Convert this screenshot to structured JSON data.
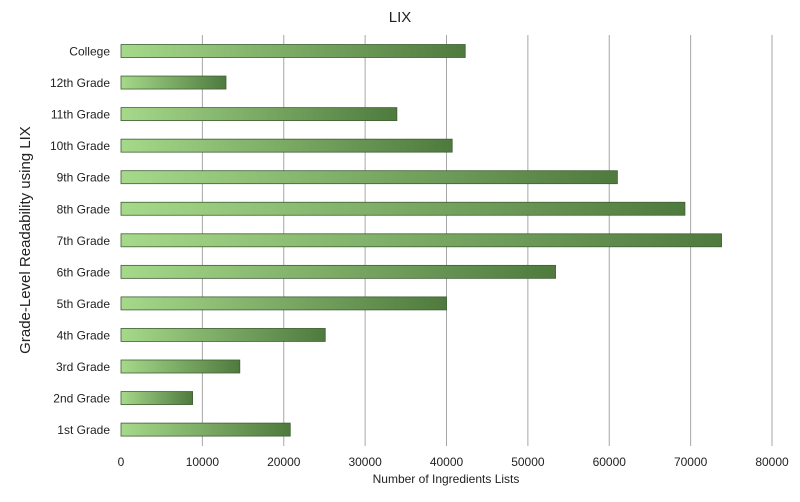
{
  "chart_data": {
    "type": "bar",
    "orientation": "horizontal",
    "title": "LIX",
    "xlabel": "Number of Ingredients Lists",
    "ylabel": "Grade-Level Readability using LIX",
    "categories": [
      "College",
      "12th Grade",
      "11th Grade",
      "10th Grade",
      "9th Grade",
      "8th Grade",
      "7th Grade",
      "6th Grade",
      "5th Grade",
      "4th Grade",
      "3rd Grade",
      "2nd Grade",
      "1st Grade"
    ],
    "values": [
      42300,
      12900,
      33900,
      40700,
      61000,
      69300,
      73800,
      53400,
      40000,
      25100,
      14600,
      8800,
      20800
    ],
    "xlim": [
      0,
      80000
    ],
    "xticks": [
      "0",
      "10000",
      "20000",
      "30000",
      "40000",
      "50000",
      "60000",
      "70000",
      "80000"
    ],
    "grid": "vertical",
    "legend": "none",
    "colors": {
      "bar_start": "#a6d98a",
      "bar_end": "#4f7a3e",
      "bar_stroke": "#3f5f33",
      "grid": "#a6a6a6"
    }
  }
}
